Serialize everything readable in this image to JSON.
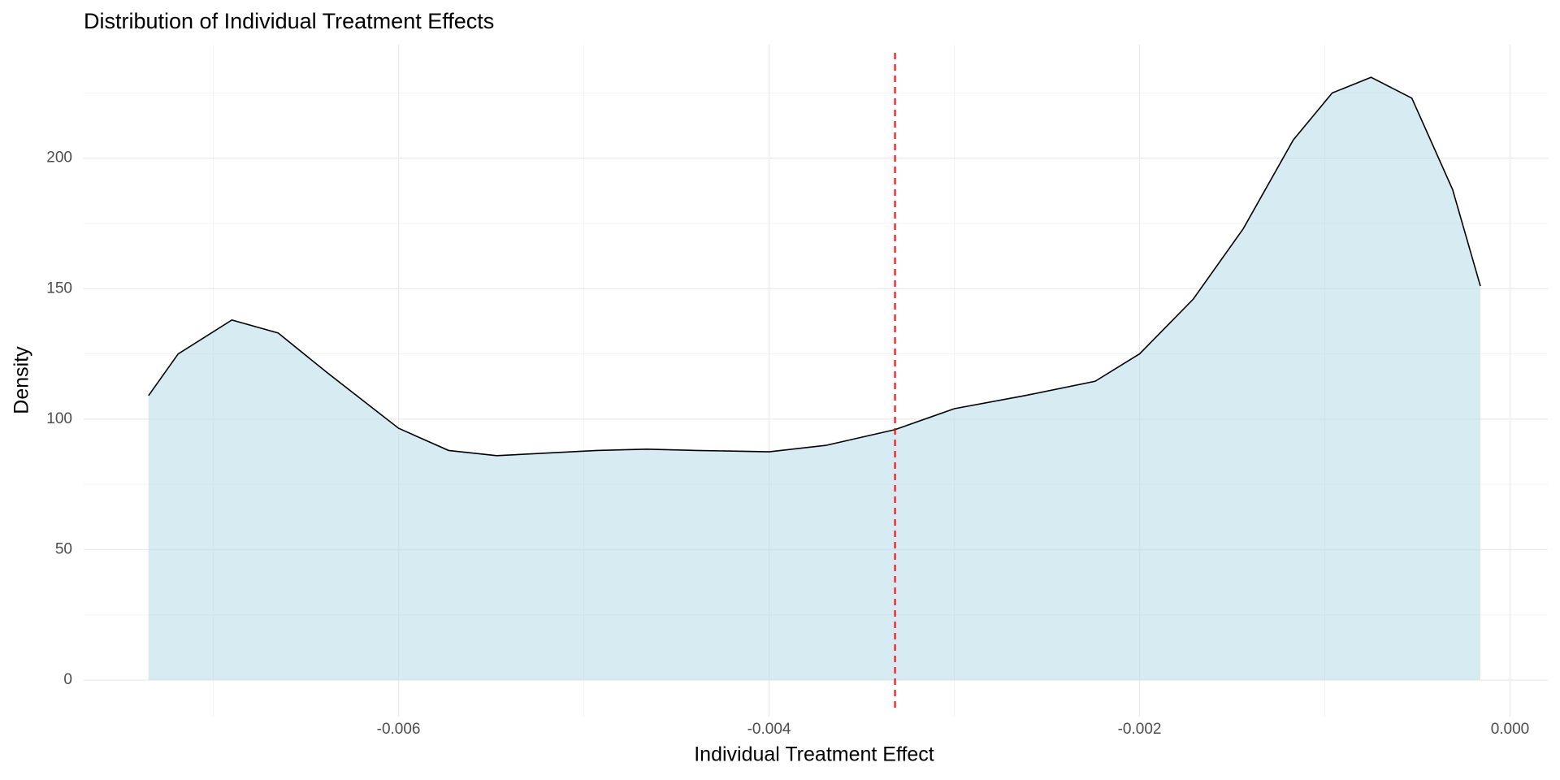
{
  "chart_data": {
    "type": "density",
    "title": "Distribution of Individual Treatment Effects",
    "x_label": "Individual Treatment Effect",
    "y_label": "Density",
    "x": [
      -0.00735,
      -0.00719,
      -0.0069,
      -0.00665,
      -0.00638,
      -0.006,
      -0.00573,
      -0.00547,
      -0.00493,
      -0.00466,
      -0.00439,
      -0.004,
      -0.00369,
      -0.00332,
      -0.003,
      -0.00262,
      -0.00224,
      -0.002,
      -0.00171,
      -0.00144,
      -0.00117,
      -0.00096,
      -0.00075,
      -0.00053,
      -0.00031,
      -0.00016
    ],
    "values": [
      109,
      125,
      138,
      133,
      117.5,
      96.5,
      88,
      86,
      88,
      88.5,
      88,
      87.5,
      90,
      96,
      104,
      109,
      114.5,
      125,
      146,
      173,
      207,
      225,
      231,
      223,
      188,
      151
    ],
    "fill": "#add8e6",
    "fill_opacity": 0.5,
    "color": "#000000",
    "vline": {
      "value": -0.00332,
      "color": "#ff0000"
    },
    "xlim": [
      -0.0077,
      0.000204
    ],
    "ylim": [
      -14,
      243.5
    ],
    "xticks": [
      -0.006,
      -0.004,
      -0.002,
      {
        "value": 0,
        "label": "0.000"
      }
    ],
    "yticks": [
      0,
      50,
      100,
      150,
      200
    ],
    "xminor": [
      -0.007,
      -0.005,
      -0.003,
      -0.001
    ],
    "yminor": [
      25,
      75,
      125,
      175,
      225
    ],
    "grid": true
  }
}
